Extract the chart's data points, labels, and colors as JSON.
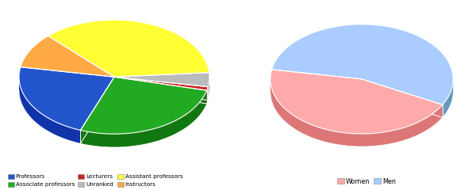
{
  "chart1": {
    "labels": [
      "Professors",
      "Associate professors",
      "Lecturers",
      "Unranked",
      "Assistant professors",
      "Instructors"
    ],
    "values": [
      22,
      27,
      1,
      4,
      36,
      10
    ],
    "colors": [
      "#2255cc",
      "#22aa22",
      "#cc2222",
      "#bbbbbb",
      "#ffff33",
      "#ffaa44"
    ],
    "dark_colors": [
      "#1133aa",
      "#117711",
      "#991111",
      "#888888",
      "#aaaa00",
      "#bb7722"
    ],
    "start_angle": 170
  },
  "chart2": {
    "labels": [
      "Women",
      "Men"
    ],
    "values": [
      45,
      55
    ],
    "colors": [
      "#ffaaaa",
      "#aaccff"
    ],
    "dark_colors": [
      "#dd7777",
      "#6699bb"
    ],
    "start_angle": 170
  },
  "legend1_items": [
    {
      "label": "Professors",
      "color": "#2255cc"
    },
    {
      "label": "Associate professors",
      "color": "#22aa22"
    },
    {
      "label": "Lecturers",
      "color": "#cc2222"
    },
    {
      "label": "Unranked",
      "color": "#bbbbbb"
    },
    {
      "label": "Assistant professors",
      "color": "#ffff33"
    },
    {
      "label": "Instructors",
      "color": "#ffaa44"
    }
  ],
  "legend2_items": [
    {
      "label": "Women",
      "color": "#ffaaaa"
    },
    {
      "label": "Men",
      "color": "#aaccff"
    }
  ],
  "background": "#ffffff"
}
